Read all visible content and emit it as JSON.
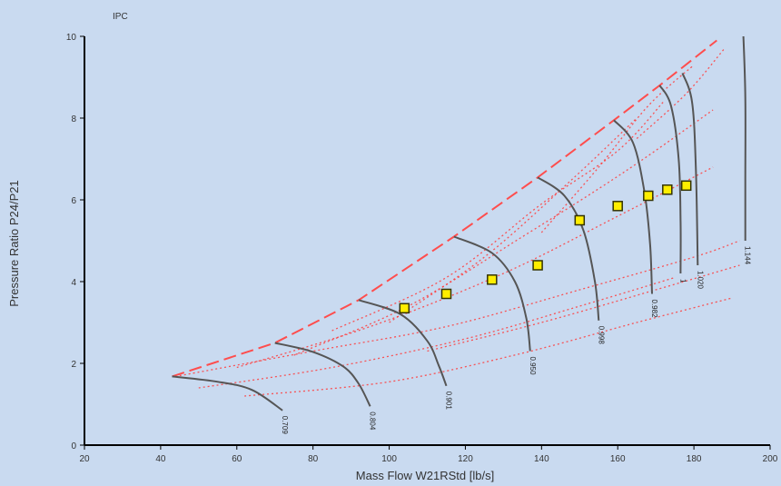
{
  "chart_data": {
    "type": "scatter",
    "title": "IPC",
    "xlabel": "Mass Flow W21RStd [lb/s]",
    "ylabel": "Pressure Ratio P24/P21",
    "xlim": [
      20,
      200
    ],
    "ylim": [
      0,
      10
    ],
    "xticks": [
      "20",
      "40",
      "60",
      "80",
      "100",
      "120",
      "140",
      "160",
      "180",
      "200"
    ],
    "yticks": [
      "0",
      "2",
      "4",
      "6",
      "8",
      "10"
    ],
    "grid": false,
    "colors": {
      "speed_lines": "#555555",
      "efficiency_lines": "#ff3b3b",
      "surge_line": "#ff4d4d",
      "operating_points_fill": "#ffee00",
      "operating_points_stroke": "#333300"
    },
    "speed_lines": [
      {
        "label": "0.709",
        "points": [
          [
            43,
            1.68
          ],
          [
            55,
            1.55
          ],
          [
            64,
            1.35
          ],
          [
            72,
            0.85
          ]
        ]
      },
      {
        "label": "0.804",
        "points": [
          [
            70,
            2.5
          ],
          [
            80,
            2.28
          ],
          [
            88,
            1.92
          ],
          [
            92,
            1.5
          ],
          [
            95,
            0.95
          ]
        ]
      },
      {
        "label": "0.901",
        "points": [
          [
            92,
            3.55
          ],
          [
            103,
            3.2
          ],
          [
            110,
            2.55
          ],
          [
            113,
            1.95
          ],
          [
            115,
            1.45
          ]
        ]
      },
      {
        "label": "0.950",
        "points": [
          [
            117,
            5.1
          ],
          [
            127,
            4.7
          ],
          [
            133,
            4.0
          ],
          [
            136,
            3.1
          ],
          [
            137,
            2.3
          ]
        ]
      },
      {
        "label": "0.998",
        "points": [
          [
            139,
            6.55
          ],
          [
            146,
            6.1
          ],
          [
            151,
            5.25
          ],
          [
            154,
            4.0
          ],
          [
            155,
            3.05
          ]
        ]
      },
      {
        "label": "0.982",
        "points": [
          [
            159,
            7.95
          ],
          [
            164,
            7.4
          ],
          [
            167,
            6.2
          ],
          [
            168.5,
            4.9
          ],
          [
            169,
            3.7
          ]
        ]
      },
      {
        "label": "1",
        "points": [
          [
            171,
            8.8
          ],
          [
            174,
            8.3
          ],
          [
            176,
            7.0
          ],
          [
            176.5,
            5.5
          ],
          [
            176.5,
            4.2
          ]
        ]
      },
      {
        "label": "1.020",
        "points": [
          [
            177,
            9.1
          ],
          [
            179.5,
            8.4
          ],
          [
            180.5,
            6.8
          ],
          [
            181,
            4.4
          ]
        ]
      },
      {
        "label": "1.144",
        "points": [
          [
            193,
            10.0
          ],
          [
            193.5,
            8.5
          ],
          [
            193.5,
            6.5
          ],
          [
            193.5,
            5.0
          ]
        ]
      }
    ],
    "surge_line": [
      [
        43,
        1.68
      ],
      [
        70,
        2.5
      ],
      [
        92,
        3.55
      ],
      [
        117,
        5.1
      ],
      [
        139,
        6.55
      ],
      [
        159,
        7.95
      ],
      [
        171,
        8.8
      ],
      [
        186,
        9.9
      ]
    ],
    "operating_points": [
      {
        "x": 104,
        "y": 3.35
      },
      {
        "x": 115,
        "y": 3.7
      },
      {
        "x": 127,
        "y": 4.05
      },
      {
        "x": 139,
        "y": 4.4
      },
      {
        "x": 150,
        "y": 5.5
      },
      {
        "x": 160,
        "y": 5.85
      },
      {
        "x": 168,
        "y": 6.1
      },
      {
        "x": 173,
        "y": 6.25
      },
      {
        "x": 178,
        "y": 6.35
      }
    ],
    "efficiency_lines": [
      [
        [
          45,
          1.7
        ],
        [
          80,
          2.3
        ],
        [
          115,
          2.9
        ],
        [
          150,
          3.8
        ],
        [
          180,
          4.6
        ],
        [
          192,
          5.0
        ]
      ],
      [
        [
          60,
          1.9
        ],
        [
          95,
          2.9
        ],
        [
          130,
          4.2
        ],
        [
          160,
          5.6
        ],
        [
          185,
          6.8
        ]
      ],
      [
        [
          75,
          2.2
        ],
        [
          105,
          3.4
        ],
        [
          135,
          5.1
        ],
        [
          162,
          6.7
        ],
        [
          185,
          8.2
        ]
      ],
      [
        [
          50,
          1.4
        ],
        [
          85,
          1.9
        ],
        [
          120,
          2.6
        ],
        [
          150,
          3.4
        ],
        [
          175,
          4.1
        ]
      ],
      [
        [
          62,
          1.2
        ],
        [
          100,
          1.55
        ],
        [
          135,
          2.25
        ],
        [
          165,
          3.0
        ],
        [
          190,
          3.6
        ]
      ],
      [
        [
          85,
          2.8
        ],
        [
          115,
          4.1
        ],
        [
          140,
          5.9
        ],
        [
          160,
          7.2
        ],
        [
          172,
          8.4
        ]
      ],
      [
        [
          100,
          3.0
        ],
        [
          125,
          4.6
        ],
        [
          148,
          6.5
        ],
        [
          165,
          8.0
        ]
      ],
      [
        [
          140,
          5.2
        ],
        [
          155,
          6.8
        ],
        [
          168,
          8.3
        ],
        [
          180,
          9.3
        ]
      ],
      [
        [
          110,
          2.3
        ],
        [
          140,
          3.0
        ],
        [
          170,
          3.8
        ],
        [
          192,
          4.4
        ]
      ],
      [
        [
          165,
          7.5
        ],
        [
          178,
          8.6
        ],
        [
          188,
          9.7
        ]
      ]
    ]
  }
}
